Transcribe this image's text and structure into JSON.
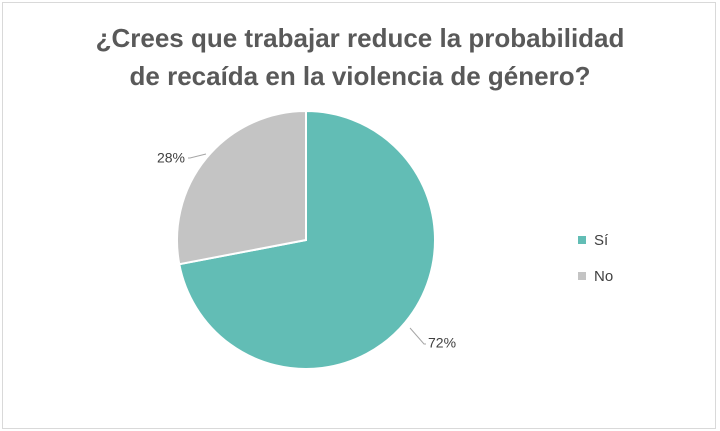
{
  "chart_data": {
    "type": "pie",
    "title_lines": [
      "¿Crees que trabajar reduce la probabilidad",
      "de recaída en la violencia de género?"
    ],
    "categories": [
      "Sí",
      "No"
    ],
    "values": [
      72,
      28
    ],
    "labels": [
      "72%",
      "28%"
    ],
    "colors": [
      "#62bdb5",
      "#c4c4c4"
    ],
    "legend_position": "right"
  }
}
